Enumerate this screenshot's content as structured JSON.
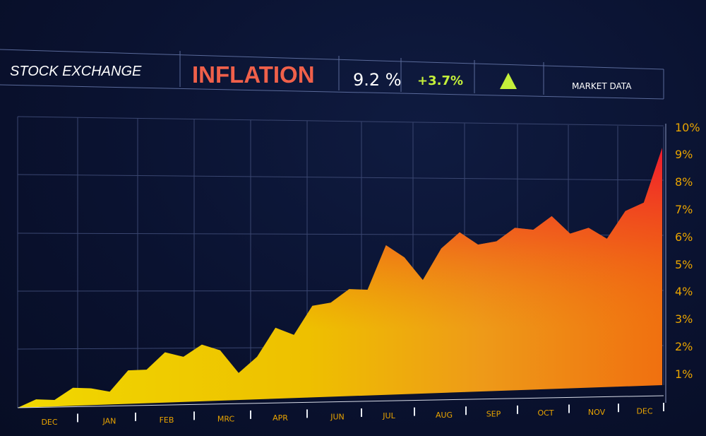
{
  "header": {
    "exchange_label": "STOCK EXCHANGE",
    "title": "INFLATION",
    "value": "9.2 %",
    "change": "+3.7%",
    "trend_icon": "triangle-up-icon",
    "market_label": "MARKET DATA"
  },
  "side_id": "#537038699",
  "colors": {
    "title": "#f0604a",
    "change": "#c4f03a",
    "trend": "#c4f03a",
    "tick_label": "#e9a400",
    "fill_low": "#f0d800",
    "fill_mid": "#ee9a18",
    "fill_high": "#f01530"
  },
  "chart_data": {
    "type": "area",
    "title": "",
    "xlabel": "",
    "ylabel": "",
    "x_tick_labels": [
      "DEC",
      "JAN",
      "FEB",
      "MRC",
      "APR",
      "JUN",
      "JUL",
      "AUG",
      "SEP",
      "OCT",
      "NOV",
      "DEC"
    ],
    "y_tick_labels": [
      "1%",
      "2%",
      "3%",
      "4%",
      "5%",
      "6%",
      "7%",
      "8%",
      "9%",
      "10%"
    ],
    "ylim": [
      0,
      10
    ],
    "grid": true,
    "series": [
      {
        "values": [
          0.0,
          0.3,
          0.25,
          0.7,
          0.65,
          0.5,
          1.3,
          1.3,
          1.95,
          1.75,
          2.2,
          1.95,
          1.05,
          1.65,
          2.75,
          2.45,
          3.55,
          3.65,
          4.15,
          4.1,
          5.8,
          5.3,
          4.4,
          5.6,
          6.2,
          5.7,
          5.8,
          6.3,
          6.2,
          6.7,
          6.0,
          6.2,
          5.75,
          6.8,
          7.1,
          9.2
        ]
      }
    ]
  }
}
